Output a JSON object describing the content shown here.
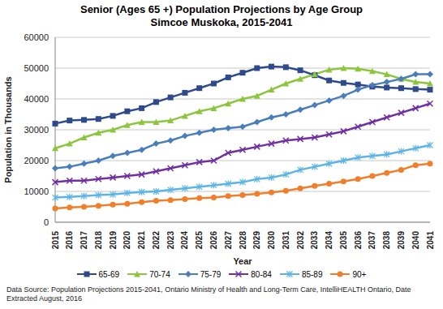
{
  "chart_data": {
    "type": "line",
    "title": "Senior (Ages 65 +) Population Projections by Age Group",
    "subtitle": "Simcoe Muskoka, 2015-2041",
    "x_label": "Year",
    "y_label": "Population in Thousands",
    "note": "Data Source: Population Projections 2015-2041, Ontario Ministry of Health and Long-Term Care, IntelliHEALTH Ontario, Date Extracted August, 2016",
    "categories": [
      "2015",
      "2016",
      "2017",
      "2018",
      "2019",
      "2020",
      "2021",
      "2022",
      "2023",
      "2024",
      "2025",
      "2026",
      "2027",
      "2028",
      "2029",
      "2030",
      "2031",
      "2032",
      "2033",
      "2034",
      "2035",
      "2036",
      "2037",
      "2038",
      "2039",
      "2040",
      "2041"
    ],
    "series": [
      {
        "name": "65-69",
        "color": "#2E4A8C",
        "marker": "square",
        "values": [
          32000,
          33000,
          33200,
          33500,
          34500,
          36000,
          37000,
          39000,
          40500,
          42000,
          43500,
          45000,
          47000,
          48500,
          50000,
          50500,
          50300,
          49300,
          47700,
          46000,
          45200,
          44700,
          44000,
          43700,
          43500,
          43200,
          43000
        ]
      },
      {
        "name": "70-74",
        "color": "#8CC63F",
        "marker": "triangle",
        "values": [
          24000,
          25500,
          27500,
          29000,
          30000,
          31500,
          32500,
          32500,
          33000,
          34500,
          36000,
          37000,
          38500,
          40000,
          41000,
          43000,
          45000,
          46500,
          48000,
          49500,
          50000,
          49800,
          49000,
          48000,
          46500,
          45500,
          45000
        ]
      },
      {
        "name": "75-79",
        "color": "#4A7EBB",
        "marker": "diamond",
        "values": [
          17500,
          18000,
          19000,
          20000,
          21500,
          22500,
          23500,
          25500,
          26500,
          28000,
          29000,
          30000,
          30500,
          31000,
          32500,
          34000,
          35000,
          36500,
          38000,
          39500,
          41000,
          43000,
          44500,
          45500,
          46500,
          48000,
          48000
        ]
      },
      {
        "name": "80-84",
        "color": "#7030A0",
        "marker": "x",
        "values": [
          13000,
          13500,
          13500,
          14000,
          14500,
          15000,
          15500,
          16500,
          17500,
          18500,
          19500,
          20000,
          22500,
          23500,
          24500,
          25500,
          26500,
          27000,
          27500,
          28500,
          29500,
          31000,
          32500,
          34000,
          35500,
          37000,
          38500
        ]
      },
      {
        "name": "85-89",
        "color": "#5BB4E5",
        "marker": "star",
        "values": [
          8000,
          8200,
          8500,
          8800,
          9000,
          9500,
          9800,
          10000,
          10500,
          11000,
          11500,
          12000,
          12500,
          13000,
          14000,
          14500,
          15500,
          17000,
          18000,
          19000,
          20000,
          21000,
          21500,
          22000,
          23000,
          24000,
          25000
        ]
      },
      {
        "name": "90+",
        "color": "#F07E2A",
        "marker": "circle",
        "values": [
          4500,
          4800,
          5000,
          5300,
          5700,
          6000,
          6500,
          7000,
          7200,
          7500,
          7800,
          8000,
          8500,
          8800,
          9200,
          9700,
          10200,
          11000,
          11800,
          12500,
          13200,
          14000,
          15000,
          16000,
          17000,
          18500,
          19000
        ]
      }
    ],
    "ylim": [
      0,
      60000
    ],
    "yticks": [
      0,
      10000,
      20000,
      30000,
      40000,
      50000,
      60000
    ],
    "grid": true,
    "legend": "bottom"
  }
}
